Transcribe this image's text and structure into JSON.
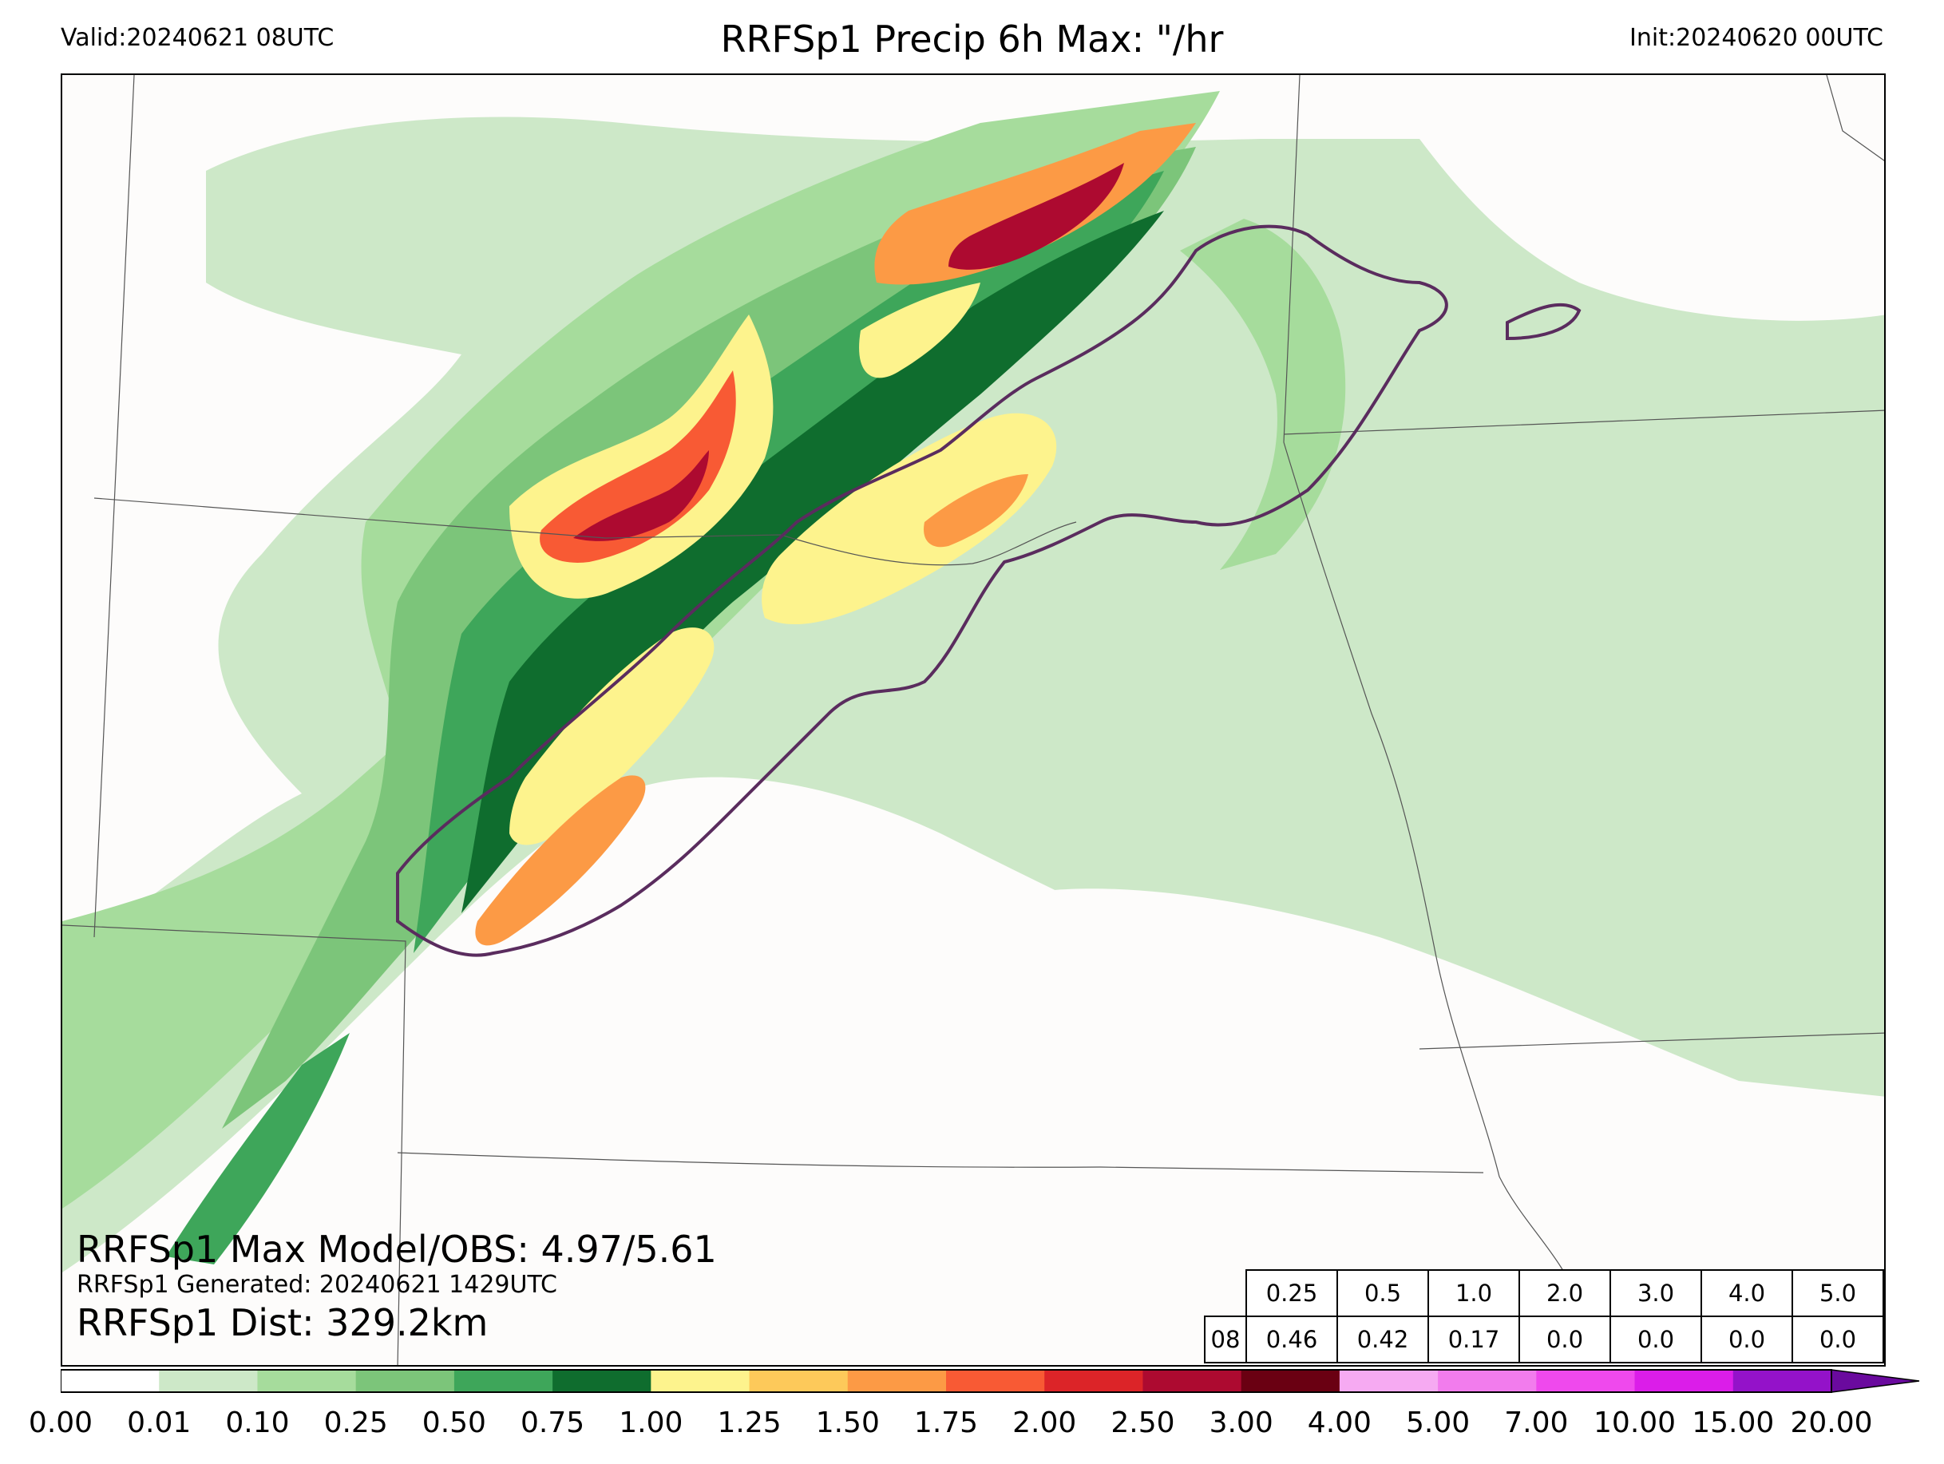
{
  "header": {
    "valid": "Valid:20240621 08UTC",
    "title": "RRFSp1 Precip 6h Max: \"/hr",
    "init": "Init:20240620 00UTC"
  },
  "stats": {
    "max_model_obs": "RRFSp1 Max Model/OBS: 4.97/5.61",
    "generated": "RRFSp1 Generated: 20240621 1429UTC",
    "distance": "RRFSp1 Dist: 329.2km"
  },
  "threshold_table": {
    "thresholds": [
      "0.25",
      "0.5",
      "1.0",
      "2.0",
      "3.0",
      "4.0",
      "5.0"
    ],
    "row_label": "08",
    "values": [
      "0.46",
      "0.42",
      "0.17",
      "0.0",
      "0.0",
      "0.0",
      "0.0"
    ]
  },
  "colorbar": {
    "ticks": [
      "0.00",
      "0.01",
      "0.10",
      "0.25",
      "0.50",
      "0.75",
      "1.00",
      "1.25",
      "1.50",
      "1.75",
      "2.00",
      "2.50",
      "3.00",
      "4.00",
      "5.00",
      "7.00",
      "10.00",
      "15.00",
      "20.00"
    ],
    "colors": [
      "#ffffff",
      "#cde8c8",
      "#a6dc9c",
      "#7cc57a",
      "#3ea65a",
      "#0f6d2e",
      "#fdf38d",
      "#fdc95a",
      "#fc9a45",
      "#f85a34",
      "#dc2428",
      "#ad0a30",
      "#6a0012",
      "#f6aaf2",
      "#f27ced",
      "#ef49ed",
      "#db1de9",
      "#9412c9"
    ]
  },
  "map_colors": {
    "background": "#fdfcfb",
    "outline": "#5a2c5e",
    "border": "#555555"
  }
}
